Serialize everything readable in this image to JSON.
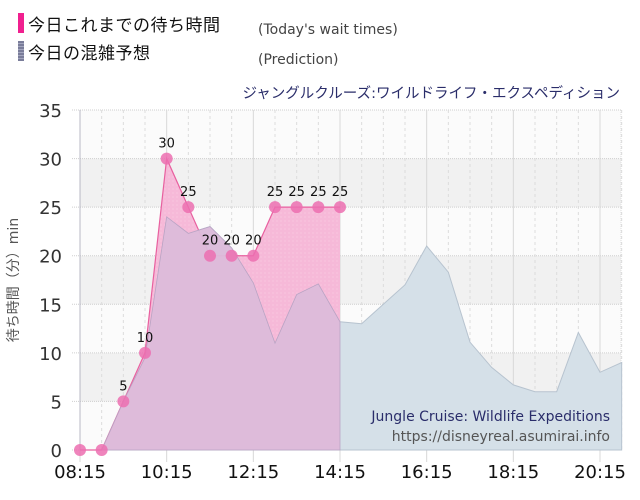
{
  "legend": {
    "actual": {
      "label_jp": "今日これまでの待ち時間",
      "label_en": "(Today's wait times)",
      "color": "#f0208f"
    },
    "prediction": {
      "label_jp": "今日の混雑予想",
      "label_en": "(Prediction)",
      "color": "#7a7d9a"
    }
  },
  "ride_name_jp": "ジャングルクルーズ:ワイルドライフ・エクスペディション",
  "y_axis_label": "待ち時間（分）min",
  "watermark": {
    "ride_name_en": "Jungle Cruise: Wildlife Expeditions",
    "url": "https://disneyreal.asumirai.info"
  },
  "colors": {
    "actual_line": "#e8609f",
    "actual_fill": "#f6b9d8",
    "actual_marker": "#ec6fb0",
    "prediction_fill": "#d5e0e8",
    "overlap_fill": "#dcbada",
    "grid": "#cfcfcf",
    "plot_bg": "#f6f6f6"
  },
  "chart_data": {
    "type": "area",
    "title": "ジャングルクルーズ:ワイルドライフ・エクスペディション",
    "xlabel": "",
    "ylabel": "待ち時間（分）min",
    "ylim": [
      0,
      35
    ],
    "y_ticks": [
      0,
      5,
      10,
      15,
      20,
      25,
      30,
      35
    ],
    "x_ticks": [
      "08:15",
      "10:15",
      "12:15",
      "14:15",
      "16:15",
      "18:15",
      "20:15"
    ],
    "grid": true,
    "legend_position": "top-left",
    "series": [
      {
        "name": "今日これまでの待ち時間 (Today's wait times)",
        "x": [
          "08:15",
          "08:45",
          "09:15",
          "09:45",
          "10:15",
          "10:45",
          "11:15",
          "11:45",
          "12:15",
          "12:45",
          "13:15",
          "13:45",
          "14:15"
        ],
        "values": [
          0,
          0,
          5,
          10,
          30,
          25,
          20,
          20,
          20,
          25,
          25,
          25,
          25
        ],
        "data_labels": [
          "0",
          "0",
          "5",
          "10",
          "30",
          "25",
          "20",
          "20",
          "20",
          "25",
          "25",
          "25",
          "25"
        ]
      },
      {
        "name": "今日の混雑予想 (Prediction)",
        "x": [
          "08:45",
          "09:15",
          "09:45",
          "10:15",
          "10:45",
          "11:15",
          "11:45",
          "12:15",
          "12:45",
          "13:15",
          "13:45",
          "14:15",
          "14:45",
          "15:15",
          "15:45",
          "16:15",
          "16:45",
          "17:15",
          "17:45",
          "18:15",
          "18:45",
          "19:15",
          "19:45",
          "20:15",
          "20:45"
        ],
        "values": [
          0,
          5,
          9.5,
          24,
          22.3,
          23,
          20.8,
          17.2,
          11,
          16,
          17.1,
          13.2,
          13,
          15,
          17,
          21,
          18.3,
          11.1,
          8.5,
          6.7,
          6,
          6,
          12.1,
          8,
          9
        ]
      }
    ]
  }
}
